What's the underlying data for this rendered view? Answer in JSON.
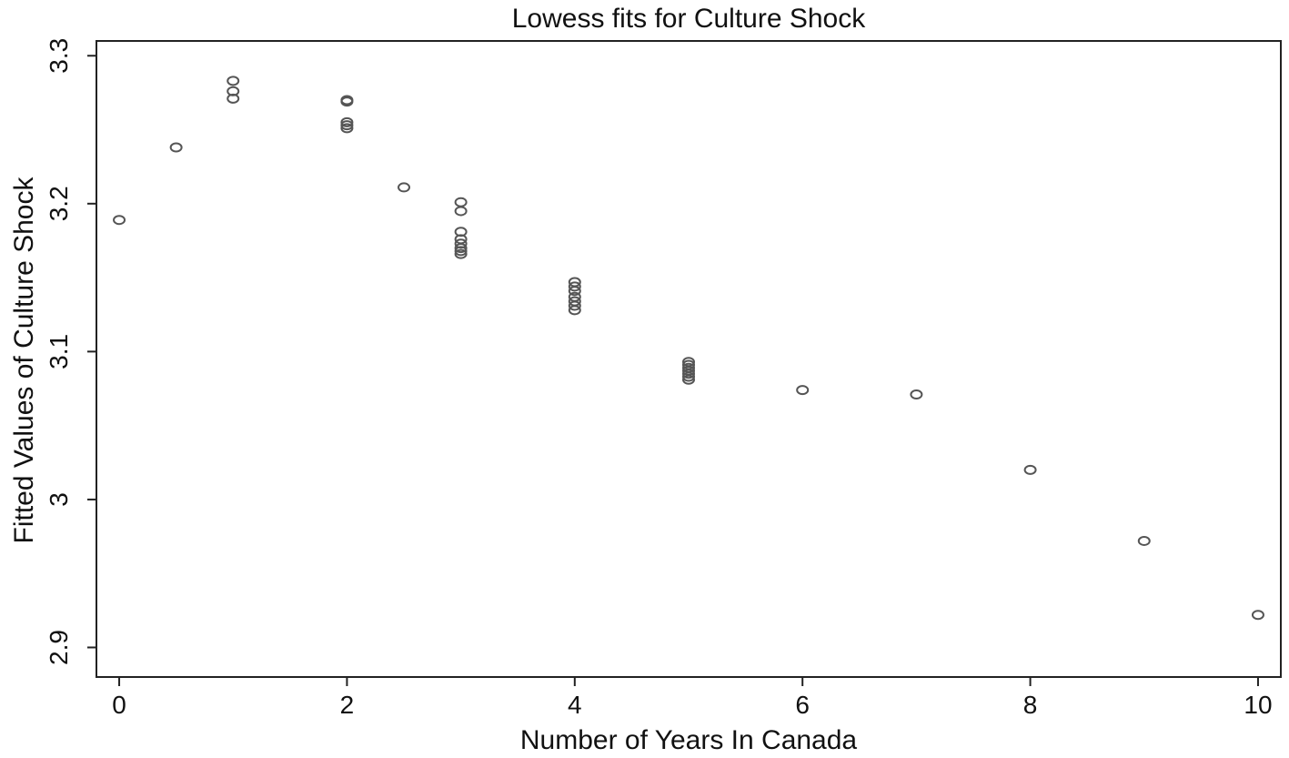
{
  "chart_data": {
    "type": "scatter",
    "title": "Lowess fits for Culture Shock",
    "xlabel": "Number of Years In Canada",
    "ylabel": "Fitted Values of Culture Shock",
    "xlim": [
      -0.2,
      10.2
    ],
    "ylim": [
      2.88,
      3.31
    ],
    "xticks": [
      0,
      2,
      4,
      6,
      8,
      10
    ],
    "xtick_labels": [
      "0",
      "2",
      "4",
      "6",
      "8",
      "10"
    ],
    "yticks": [
      2.9,
      3.0,
      3.1,
      3.2,
      3.3
    ],
    "ytick_labels": [
      "2.9",
      "3",
      "3.1",
      "3.2",
      "3.3"
    ],
    "grid": false,
    "legend": "none",
    "marker_color": "#555555",
    "series": [
      {
        "points": [
          {
            "x": 0,
            "y": 3.189
          },
          {
            "x": 0.5,
            "y": 3.238
          },
          {
            "x": 1,
            "y": 3.283
          },
          {
            "x": 1,
            "y": 3.276
          },
          {
            "x": 1,
            "y": 3.271
          },
          {
            "x": 2,
            "y": 3.27
          },
          {
            "x": 2,
            "y": 3.269
          },
          {
            "x": 2,
            "y": 3.255
          },
          {
            "x": 2,
            "y": 3.253
          },
          {
            "x": 2,
            "y": 3.251
          },
          {
            "x": 2.5,
            "y": 3.211
          },
          {
            "x": 3,
            "y": 3.201
          },
          {
            "x": 3,
            "y": 3.195
          },
          {
            "x": 3,
            "y": 3.181
          },
          {
            "x": 3,
            "y": 3.176
          },
          {
            "x": 3,
            "y": 3.173
          },
          {
            "x": 3,
            "y": 3.17
          },
          {
            "x": 3,
            "y": 3.168
          },
          {
            "x": 3,
            "y": 3.166
          },
          {
            "x": 4,
            "y": 3.147
          },
          {
            "x": 4,
            "y": 3.144
          },
          {
            "x": 4,
            "y": 3.141
          },
          {
            "x": 4,
            "y": 3.137
          },
          {
            "x": 4,
            "y": 3.134
          },
          {
            "x": 4,
            "y": 3.131
          },
          {
            "x": 4,
            "y": 3.128
          },
          {
            "x": 5,
            "y": 3.093
          },
          {
            "x": 5,
            "y": 3.091
          },
          {
            "x": 5,
            "y": 3.089
          },
          {
            "x": 5,
            "y": 3.087
          },
          {
            "x": 5,
            "y": 3.085
          },
          {
            "x": 5,
            "y": 3.083
          },
          {
            "x": 5,
            "y": 3.081
          },
          {
            "x": 6,
            "y": 3.074
          },
          {
            "x": 7,
            "y": 3.071
          },
          {
            "x": 8,
            "y": 3.02
          },
          {
            "x": 9,
            "y": 2.972
          },
          {
            "x": 10,
            "y": 2.922
          }
        ]
      }
    ]
  }
}
